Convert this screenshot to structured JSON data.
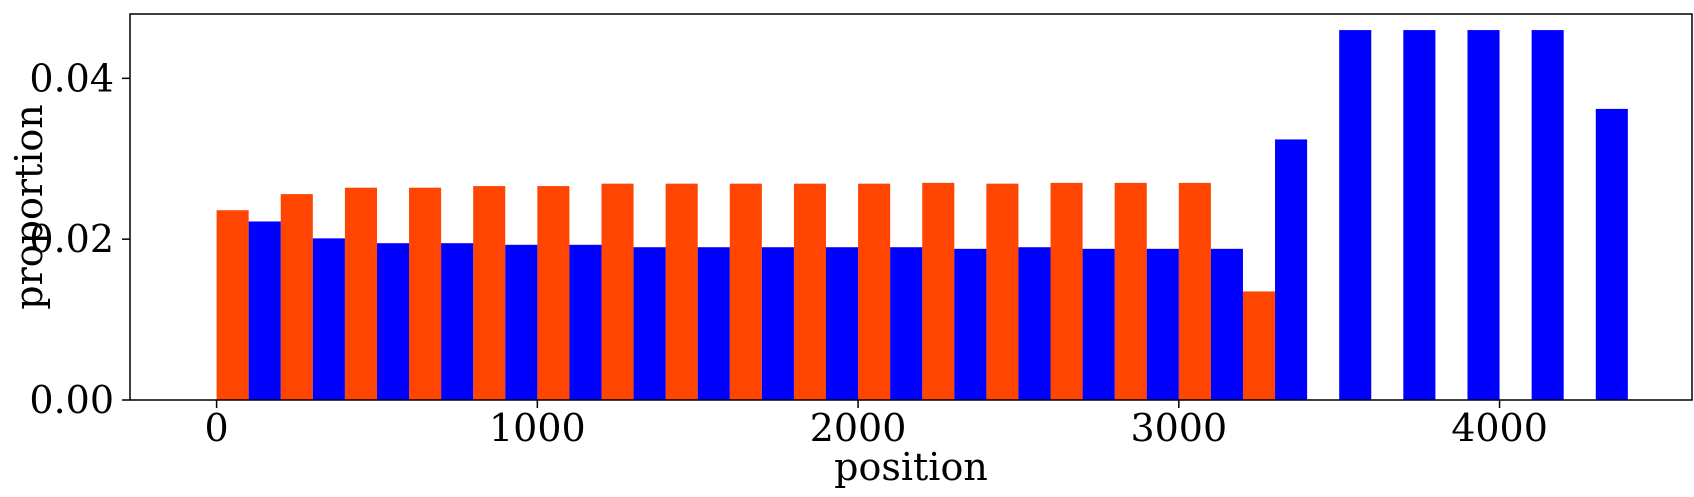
{
  "chart_data": {
    "type": "bar",
    "title": "",
    "xlabel": "position",
    "ylabel": "proportion",
    "xlim": [
      -270,
      4600
    ],
    "ylim": [
      0,
      0.048
    ],
    "x_ticks": [
      0,
      1000,
      2000,
      3000,
      4000
    ],
    "x_tick_labels": [
      "0",
      "1000",
      "2000",
      "3000",
      "4000"
    ],
    "y_ticks": [
      0,
      0.02,
      0.04
    ],
    "y_tick_labels": [
      "0.00",
      "0.02",
      "0.04"
    ],
    "grid": false,
    "bar_width": 100,
    "series": [
      {
        "color": "#ff4500",
        "x": [
          0,
          200,
          400,
          600,
          800,
          1000,
          1200,
          1400,
          1600,
          1800,
          2000,
          2200,
          2400,
          2600,
          2800,
          3000,
          3200
        ],
        "values": [
          0.0236,
          0.0256,
          0.0264,
          0.0264,
          0.0266,
          0.0266,
          0.0269,
          0.0269,
          0.0269,
          0.0269,
          0.0269,
          0.027,
          0.0269,
          0.027,
          0.027,
          0.027,
          0.0135
        ]
      },
      {
        "color": "#0000ff",
        "x": [
          100,
          300,
          500,
          700,
          900,
          1100,
          1300,
          1500,
          1700,
          1900,
          2100,
          2300,
          2500,
          2700,
          2900,
          3100,
          3300,
          3500,
          3700,
          3900,
          4100,
          4300
        ],
        "values": [
          0.0222,
          0.0201,
          0.0195,
          0.0195,
          0.0193,
          0.0193,
          0.019,
          0.019,
          0.019,
          0.019,
          0.019,
          0.0188,
          0.019,
          0.0188,
          0.0188,
          0.0188,
          0.0324,
          0.046,
          0.046,
          0.046,
          0.046,
          0.0362
        ]
      }
    ]
  }
}
